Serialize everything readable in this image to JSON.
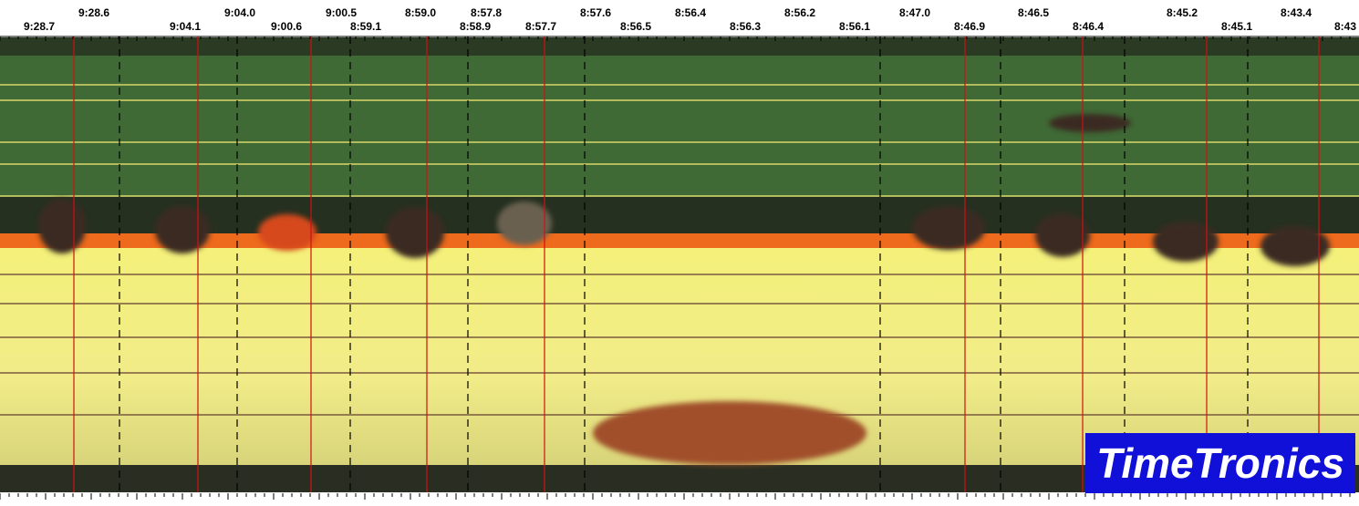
{
  "time_labels_top": [
    "9:28.6",
    "9:04.0",
    "9:00.5",
    "8:59.0",
    "8:57.8",
    "8:57.6",
    "8:56.4",
    "8:56.2",
    "8:47.0",
    "8:46.5",
    "8:45.2",
    "8:43.4"
  ],
  "time_labels_bottom": [
    "9:28.7",
    "9:04.1",
    "9:00.6",
    "8:59.1",
    "8:58.9",
    "8:57.7",
    "8:56.5",
    "8:56.3",
    "8:56.1",
    "8:46.9",
    "8:46.4",
    "8:45.1",
    "8:43"
  ],
  "logo": "TimeTronics"
}
